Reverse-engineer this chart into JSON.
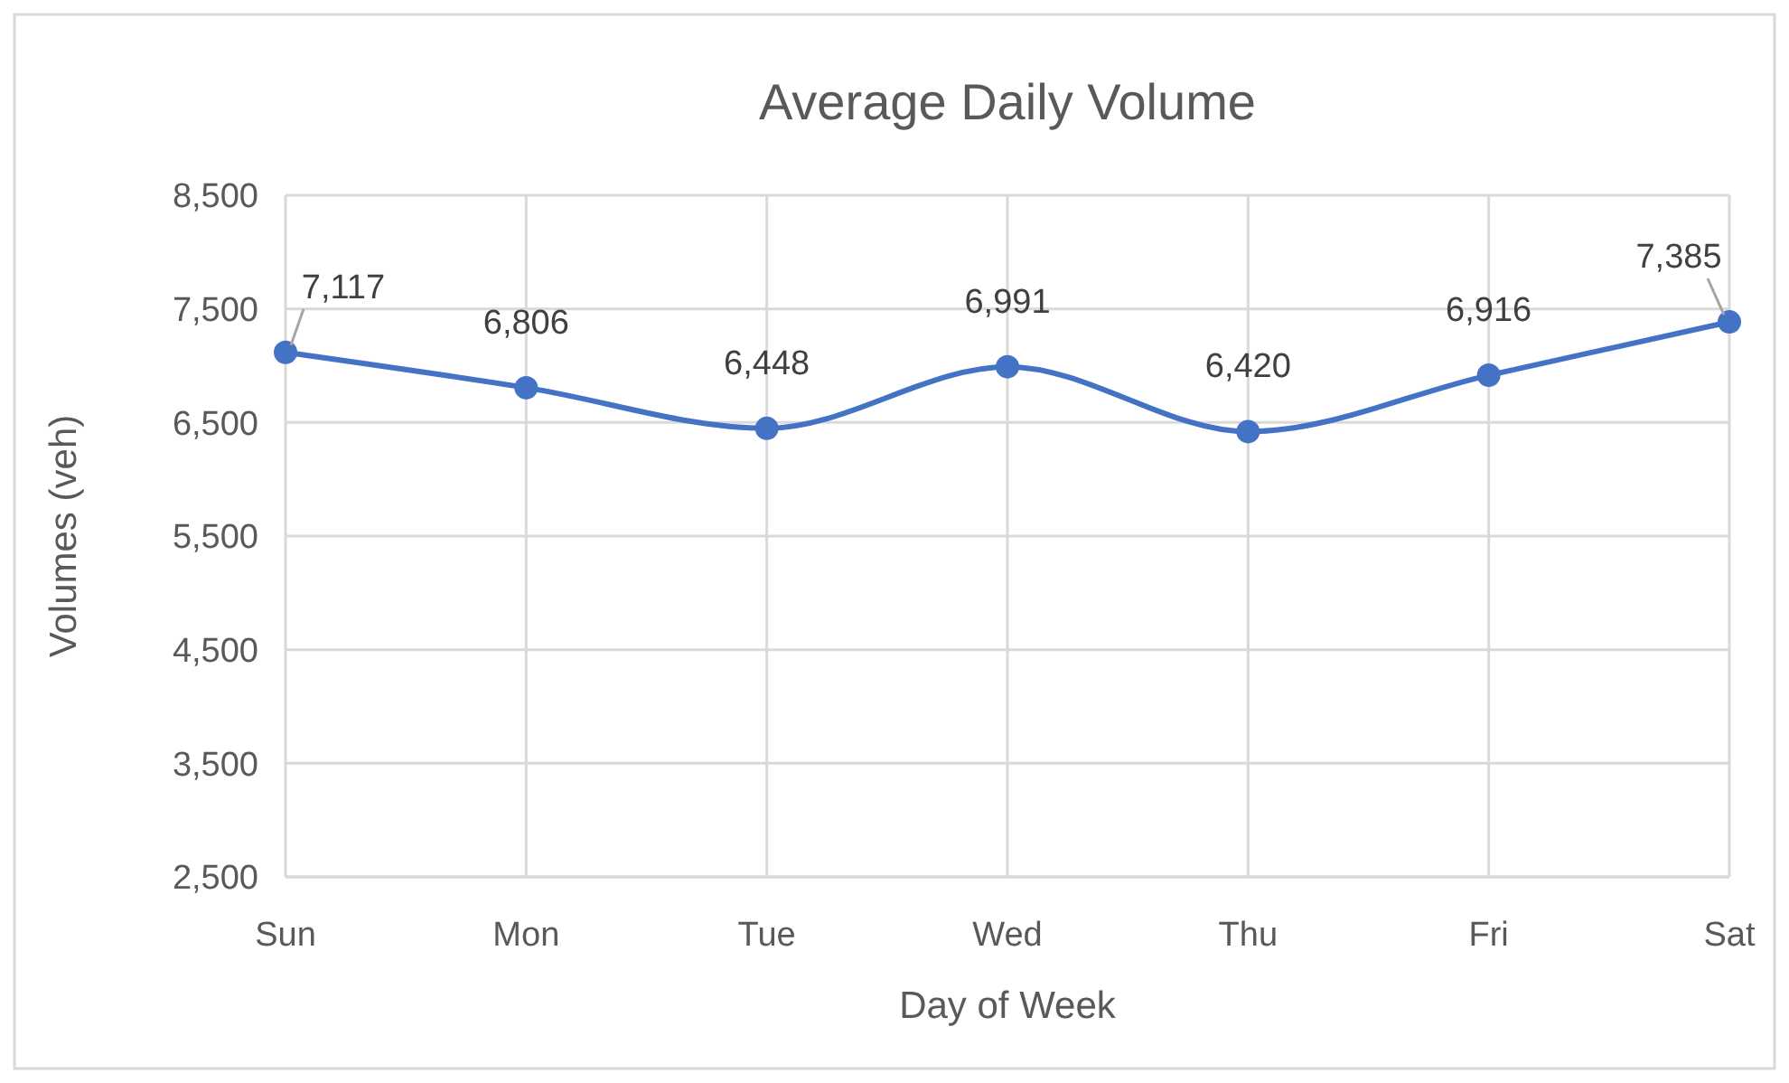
{
  "chart_data": {
    "type": "line",
    "title": "Average Daily Volume",
    "xlabel": "Day of Week",
    "ylabel": "Volumes (veh)",
    "categories": [
      "Sun",
      "Mon",
      "Tue",
      "Wed",
      "Thu",
      "Fri",
      "Sat"
    ],
    "series": [
      {
        "color": "#4472c4",
        "values": [
          7117,
          6806,
          6448,
          6991,
          6420,
          6916,
          7385
        ],
        "value_labels": [
          "7,117",
          "6,806",
          "6,448",
          "6,991",
          "6,420",
          "6,916",
          "7,385"
        ]
      }
    ],
    "ylim": [
      2500,
      8500
    ],
    "yticks": [
      {
        "value": 2500,
        "label": "2,500"
      },
      {
        "value": 3500,
        "label": "3,500"
      },
      {
        "value": 4500,
        "label": "4,500"
      },
      {
        "value": 5500,
        "label": "5,500"
      },
      {
        "value": 6500,
        "label": "6,500"
      },
      {
        "value": 7500,
        "label": "7,500"
      },
      {
        "value": 8500,
        "label": "8,500"
      }
    ],
    "grid": true,
    "marker": "circle",
    "line_style": "solid"
  }
}
